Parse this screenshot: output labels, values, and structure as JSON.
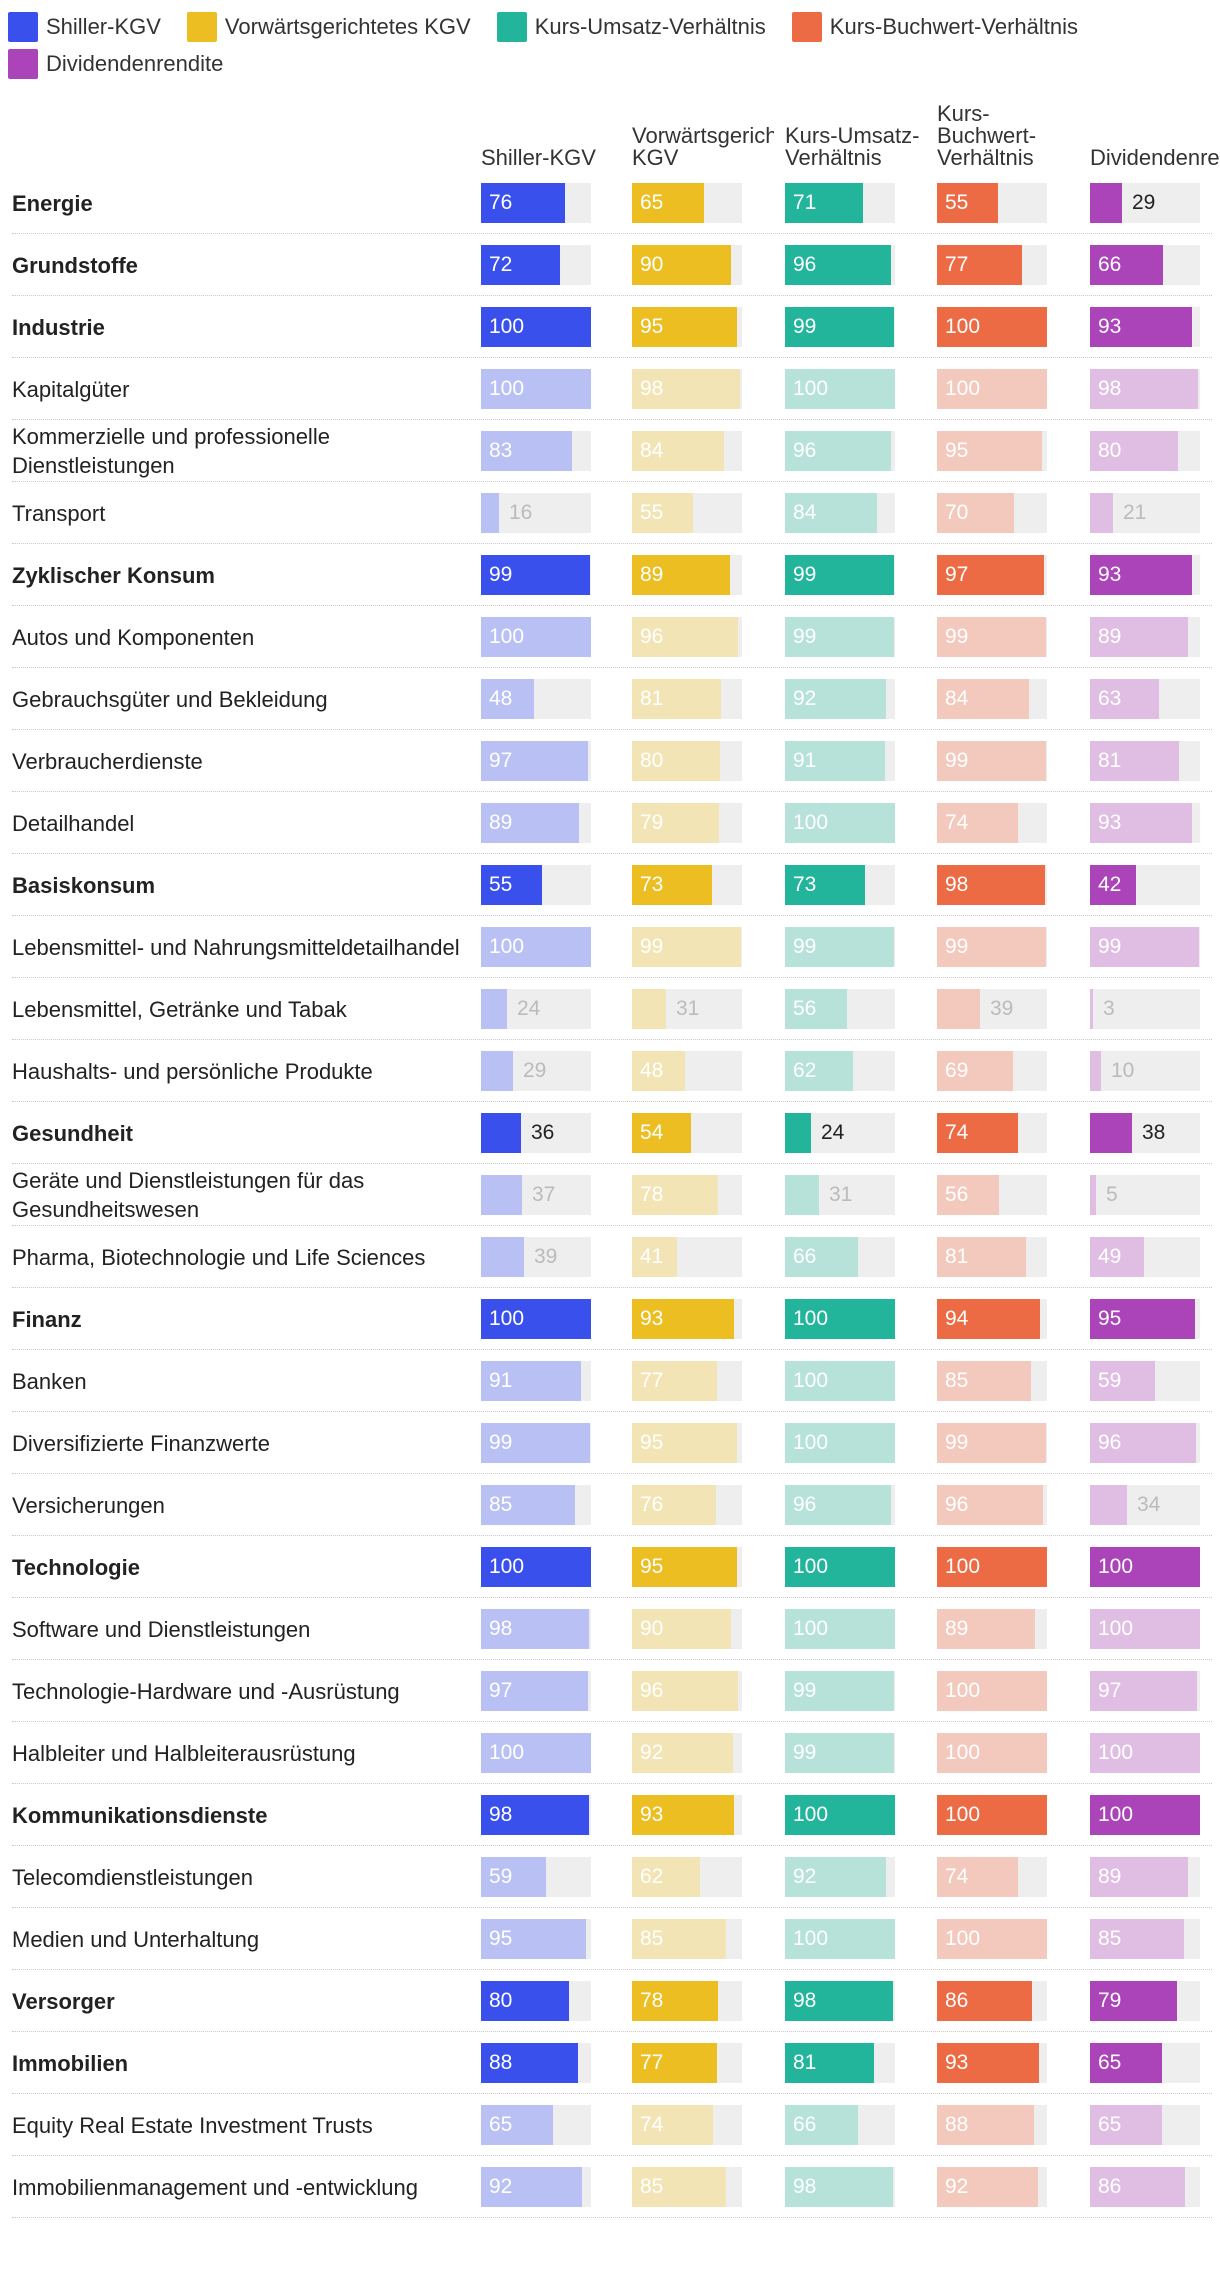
{
  "chart_data": {
    "type": "table",
    "legend_position": "top",
    "metrics": [
      {
        "key": "shiller",
        "legend_label": "Shiller-KGV",
        "header_label": "Shiller-KGV",
        "color": "#3a50ec",
        "light_color": "#b9c0f4"
      },
      {
        "key": "forward",
        "legend_label": "Vorwärtsgerichtetes KGV",
        "header_label": "Vorwärtsgerichtetes KGV",
        "color": "#ecbe22",
        "light_color": "#f3e4b6"
      },
      {
        "key": "ps",
        "legend_label": "Kurs-Umsatz-Verhältnis",
        "header_label": "Kurs-Umsatz-Verhältnis",
        "color": "#22b59b",
        "light_color": "#b6e2da"
      },
      {
        "key": "pb",
        "legend_label": "Kurs-Buchwert-Verhältnis",
        "header_label": "Kurs-Buchwert-Verhältnis",
        "color": "#ec6b44",
        "light_color": "#f3c9bd"
      },
      {
        "key": "div",
        "legend_label": "Dividendenrendite",
        "header_label": "Dividendenrendite",
        "color": "#ab44b9",
        "light_color": "#e0bee3"
      }
    ],
    "x_range": [
      0,
      100
    ],
    "rows": [
      {
        "label": "Energie",
        "sector": true,
        "values": [
          76,
          65,
          71,
          55,
          29
        ]
      },
      {
        "label": "Grundstoffe",
        "sector": true,
        "values": [
          72,
          90,
          96,
          77,
          66
        ]
      },
      {
        "label": "Industrie",
        "sector": true,
        "values": [
          100,
          95,
          99,
          100,
          93
        ]
      },
      {
        "label": "Kapitalgüter",
        "sector": false,
        "values": [
          100,
          98,
          100,
          100,
          98
        ]
      },
      {
        "label": "Kommerzielle und professionelle Dienstleistungen",
        "sector": false,
        "values": [
          83,
          84,
          96,
          95,
          80
        ]
      },
      {
        "label": "Transport",
        "sector": false,
        "values": [
          16,
          55,
          84,
          70,
          21
        ]
      },
      {
        "label": "Zyklischer Konsum",
        "sector": true,
        "values": [
          99,
          89,
          99,
          97,
          93
        ]
      },
      {
        "label": "Autos und Komponenten",
        "sector": false,
        "values": [
          100,
          96,
          99,
          99,
          89
        ]
      },
      {
        "label": "Gebrauchsgüter und Bekleidung",
        "sector": false,
        "values": [
          48,
          81,
          92,
          84,
          63
        ]
      },
      {
        "label": "Verbraucherdienste",
        "sector": false,
        "values": [
          97,
          80,
          91,
          99,
          81
        ]
      },
      {
        "label": "Detailhandel",
        "sector": false,
        "values": [
          89,
          79,
          100,
          74,
          93
        ]
      },
      {
        "label": "Basiskonsum",
        "sector": true,
        "values": [
          55,
          73,
          73,
          98,
          42
        ]
      },
      {
        "label": "Lebensmittel- und Nahrungsmitteldetailhandel",
        "sector": false,
        "values": [
          100,
          99,
          99,
          99,
          99
        ]
      },
      {
        "label": "Lebensmittel, Getränke und Tabak",
        "sector": false,
        "values": [
          24,
          31,
          56,
          39,
          3
        ]
      },
      {
        "label": "Haushalts- und persönliche Produkte",
        "sector": false,
        "values": [
          29,
          48,
          62,
          69,
          10
        ]
      },
      {
        "label": "Gesundheit",
        "sector": true,
        "values": [
          36,
          54,
          24,
          74,
          38
        ]
      },
      {
        "label": "Geräte und Dienstleistungen für das Gesundheitswesen",
        "sector": false,
        "values": [
          37,
          78,
          31,
          56,
          5
        ]
      },
      {
        "label": "Pharma, Biotechnologie und Life Sciences",
        "sector": false,
        "values": [
          39,
          41,
          66,
          81,
          49
        ]
      },
      {
        "label": "Finanz",
        "sector": true,
        "values": [
          100,
          93,
          100,
          94,
          95
        ]
      },
      {
        "label": "Banken",
        "sector": false,
        "values": [
          91,
          77,
          100,
          85,
          59
        ]
      },
      {
        "label": "Diversifizierte Finanzwerte",
        "sector": false,
        "values": [
          99,
          95,
          100,
          99,
          96
        ]
      },
      {
        "label": "Versicherungen",
        "sector": false,
        "values": [
          85,
          76,
          96,
          96,
          34
        ]
      },
      {
        "label": "Technologie",
        "sector": true,
        "values": [
          100,
          95,
          100,
          100,
          100
        ]
      },
      {
        "label": "Software und Dienstleistungen",
        "sector": false,
        "values": [
          98,
          90,
          100,
          89,
          100
        ]
      },
      {
        "label": "Technologie-Hardware und -Ausrüstung",
        "sector": false,
        "values": [
          97,
          96,
          99,
          100,
          97
        ]
      },
      {
        "label": "Halbleiter und Halbleiterausrüstung",
        "sector": false,
        "values": [
          100,
          92,
          99,
          100,
          100
        ]
      },
      {
        "label": "Kommunikationsdienste",
        "sector": true,
        "values": [
          98,
          93,
          100,
          100,
          100
        ]
      },
      {
        "label": "Telecomdienstleistungen",
        "sector": false,
        "values": [
          59,
          62,
          92,
          74,
          89
        ]
      },
      {
        "label": "Medien und Unterhaltung",
        "sector": false,
        "values": [
          95,
          85,
          100,
          100,
          85
        ]
      },
      {
        "label": "Versorger",
        "sector": true,
        "values": [
          80,
          78,
          98,
          86,
          79
        ]
      },
      {
        "label": "Immobilien",
        "sector": true,
        "values": [
          88,
          77,
          81,
          93,
          65
        ]
      },
      {
        "label": "Equity Real Estate Investment Trusts",
        "sector": false,
        "values": [
          65,
          74,
          66,
          88,
          65
        ]
      },
      {
        "label": "Immobilienmanagement und -entwicklung",
        "sector": false,
        "values": [
          92,
          85,
          98,
          92,
          86
        ]
      }
    ]
  }
}
